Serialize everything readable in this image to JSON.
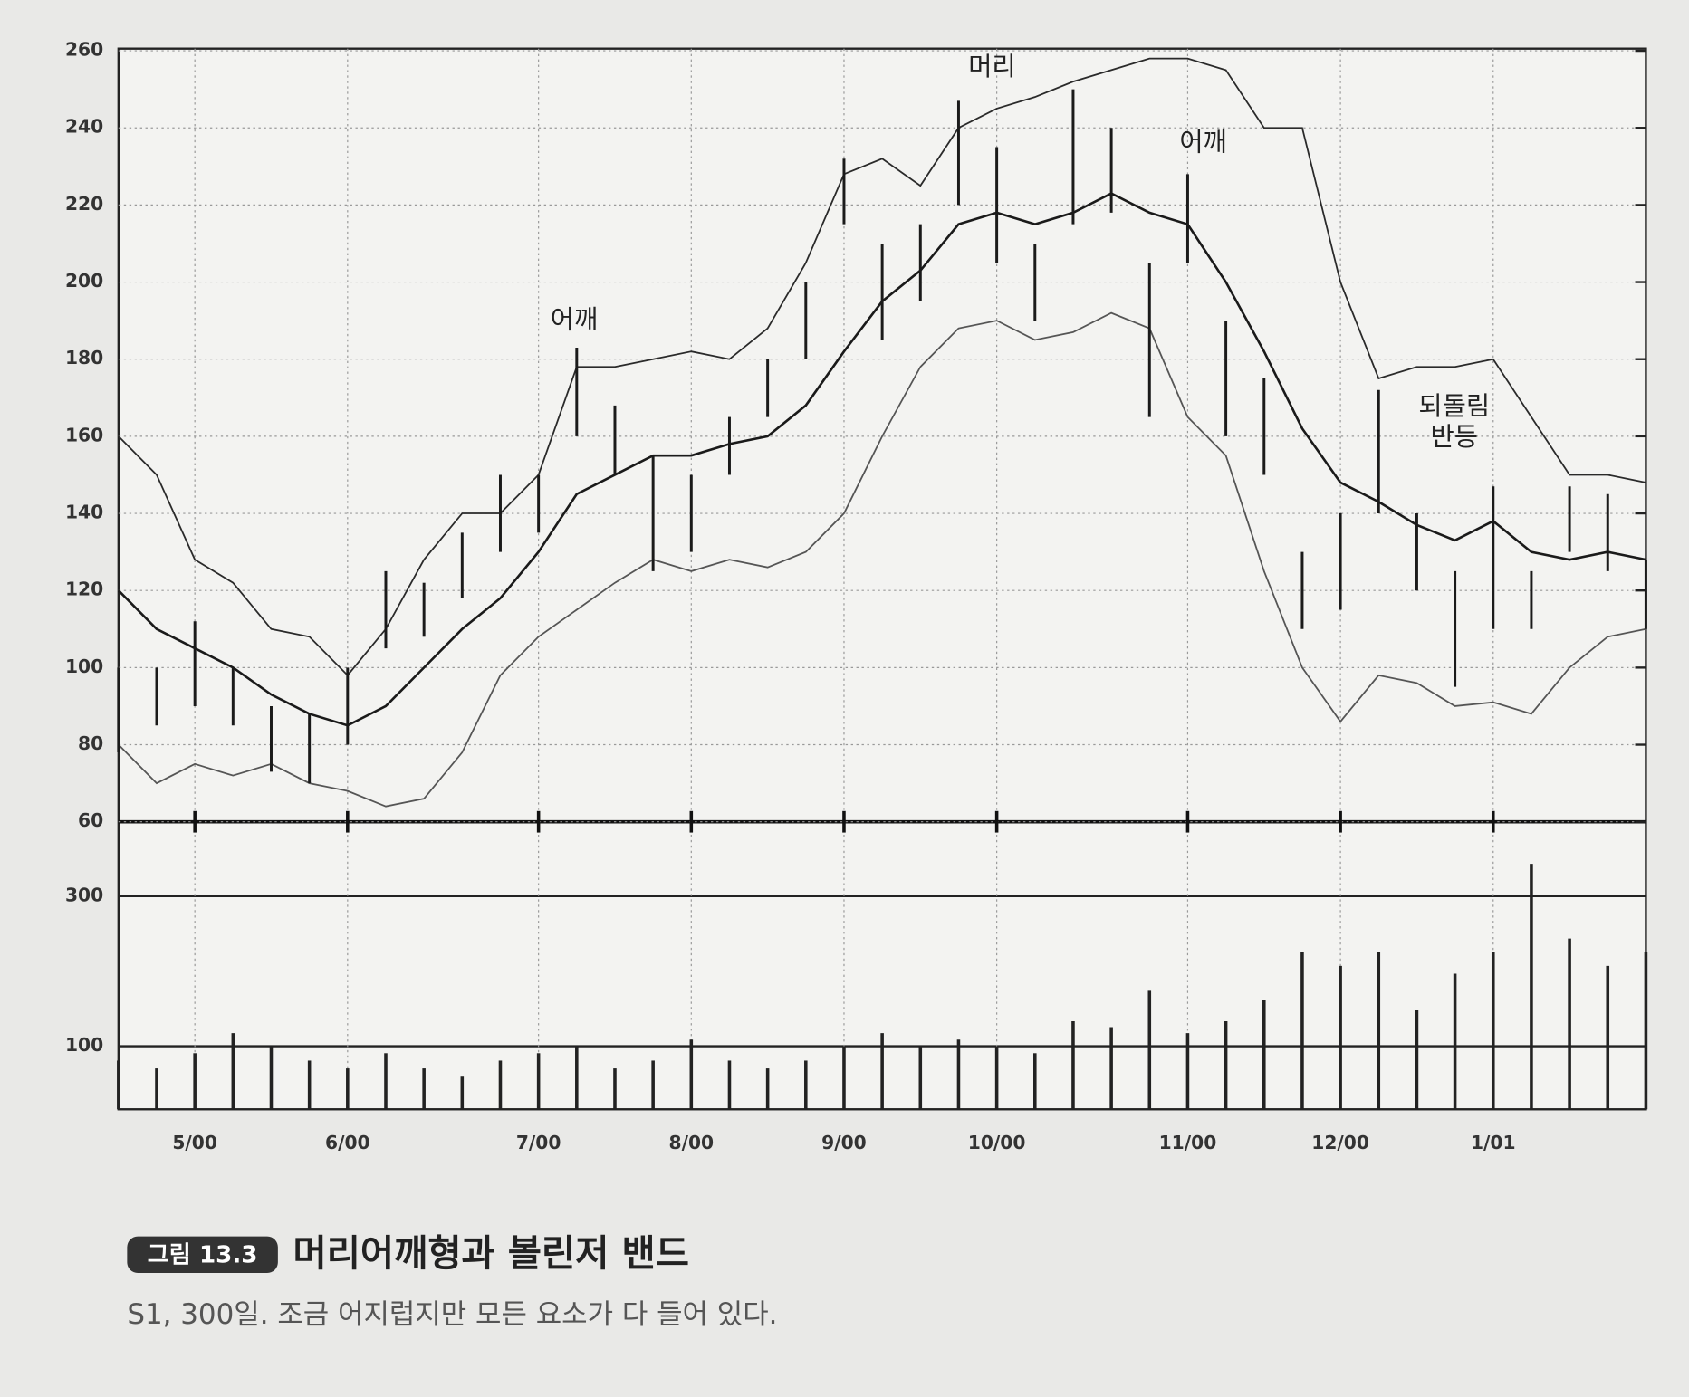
{
  "chart_data": {
    "type": "ohlc",
    "categories": [
      null,
      null,
      "5/00",
      null,
      null,
      null,
      "6/00",
      null,
      null,
      null,
      null,
      "7/00",
      null,
      null,
      null,
      "8/00",
      null,
      null,
      null,
      "9/00",
      null,
      null,
      null,
      "10/00",
      null,
      null,
      null,
      null,
      "11/00",
      null,
      null,
      null,
      "12/00",
      null,
      null,
      null,
      "1/01",
      null,
      null,
      null,
      null
    ],
    "high": [
      100,
      100,
      112,
      100,
      90,
      88,
      100,
      125,
      122,
      135,
      150,
      150,
      183,
      168,
      155,
      150,
      165,
      180,
      200,
      232,
      210,
      215,
      247,
      235,
      210,
      250,
      240,
      205,
      228,
      190,
      175,
      130,
      140,
      172,
      140,
      125,
      147,
      125,
      147,
      145,
      128
    ],
    "low": [
      78,
      85,
      90,
      85,
      73,
      70,
      80,
      105,
      108,
      118,
      130,
      135,
      160,
      150,
      125,
      130,
      150,
      165,
      180,
      215,
      185,
      195,
      220,
      205,
      190,
      215,
      218,
      165,
      205,
      160,
      150,
      110,
      115,
      140,
      120,
      95,
      110,
      110,
      130,
      125,
      110
    ],
    "price_color": "#1a1a1a",
    "series": [
      {
        "color": "#2a2a2a",
        "values": [
          160,
          150,
          128,
          122,
          110,
          108,
          98,
          110,
          128,
          140,
          140,
          150,
          178,
          178,
          180,
          182,
          180,
          188,
          205,
          228,
          232,
          225,
          240,
          245,
          248,
          252,
          255,
          258,
          258,
          255,
          240,
          240,
          200,
          175,
          178,
          178,
          180,
          165,
          150,
          150,
          148
        ]
      },
      {
        "color": "#1a1a1a",
        "values": [
          120,
          110,
          105,
          100,
          93,
          88,
          85,
          90,
          100,
          110,
          118,
          130,
          145,
          150,
          155,
          155,
          158,
          160,
          168,
          182,
          195,
          203,
          215,
          218,
          215,
          218,
          223,
          218,
          215,
          200,
          182,
          162,
          148,
          143,
          137,
          133,
          138,
          130,
          128,
          130,
          128
        ]
      },
      {
        "color": "#555555",
        "values": [
          80,
          70,
          75,
          72,
          75,
          70,
          68,
          64,
          66,
          78,
          98,
          108,
          115,
          122,
          128,
          125,
          128,
          126,
          130,
          140,
          160,
          178,
          188,
          190,
          185,
          187,
          192,
          188,
          165,
          155,
          125,
          100,
          86,
          98,
          96,
          90,
          91,
          88,
          100,
          108,
          110
        ]
      }
    ],
    "ylim": [
      60,
      260
    ],
    "yticks": [
      60,
      80,
      100,
      120,
      140,
      160,
      180,
      200,
      220,
      240,
      260
    ],
    "grid": true,
    "annotations": [
      "어깨",
      "머리",
      "어깨",
      "되돌림",
      "반등"
    ],
    "volume": {
      "type": "bar",
      "log_scale": true,
      "color": "#222222",
      "values": [
        90,
        85,
        95,
        110,
        100,
        90,
        85,
        95,
        85,
        80,
        90,
        95,
        100,
        85,
        90,
        105,
        90,
        85,
        90,
        100,
        110,
        100,
        105,
        100,
        95,
        120,
        115,
        150,
        110,
        120,
        140,
        200,
        180,
        200,
        130,
        170,
        200,
        380,
        220,
        180,
        200
      ],
      "ylim": [
        63,
        517
      ],
      "yticks": [
        100,
        300
      ]
    }
  },
  "figure": {
    "label": "그림 13.3",
    "title": "머리어깨형과 볼린저 밴드",
    "caption": "S1, 300일. 조금 어지럽지만 모든 요소가 다 들어 있다."
  }
}
